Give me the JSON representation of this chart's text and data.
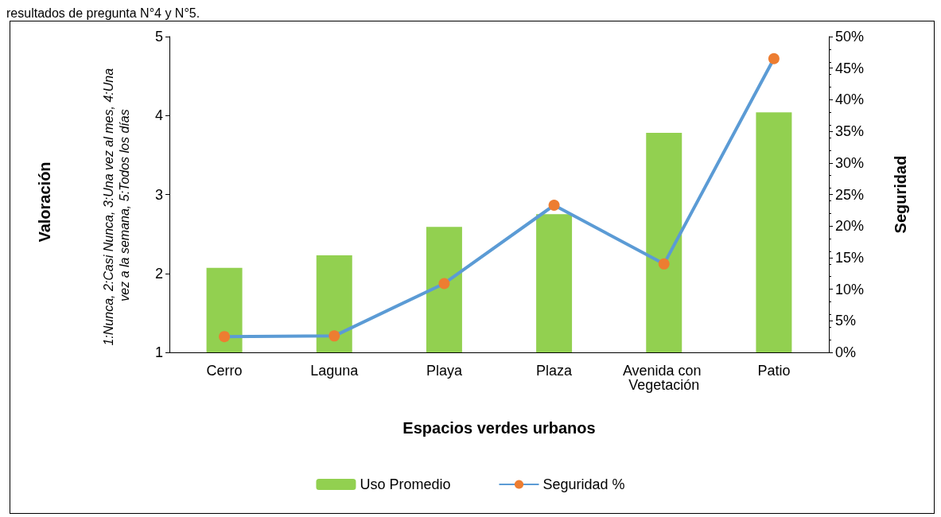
{
  "chart_data": {
    "type": "bar",
    "annotations": [
      "resultados de pregunta N°4 y N°5.",
      "1:Nunca, 2:Casi Nunca, 3:Una vez al mes, 4:Una vez a la semana, 5:Todos los días",
      "Valoración"
    ],
    "xlabel": "Espacios verdes urbanos",
    "y2label": "Seguridad",
    "categories": [
      "Cerro",
      "Laguna",
      "Playa",
      "Plaza",
      "Avenida con Vegetación",
      "Patio"
    ],
    "series": [
      {
        "name": "Uso Promedio",
        "color": "#92d050",
        "values": [
          2.07,
          2.23,
          2.59,
          2.75,
          3.78,
          4.04
        ]
      },
      {
        "name": "Seguridad %",
        "type": "line",
        "axis": "y2",
        "color": "#5b9bd5",
        "marker": "circle",
        "colors": [
          "#ed7d31",
          "#ed7d31",
          "#ed7d31",
          "#ed7d31",
          "#ed7d31",
          "#ed7d31"
        ],
        "values": [
          2.5,
          2.6,
          10.9,
          23.3,
          14.0,
          46.5
        ]
      }
    ],
    "ylim": [
      1,
      5
    ],
    "yticks": [
      1,
      2,
      3,
      4,
      5
    ],
    "y2lim": [
      0,
      50
    ],
    "y2ticks": [
      {
        "value": 0,
        "label": "0%"
      },
      {
        "value": 5,
        "label": "5%"
      },
      {
        "value": 10,
        "label": "10%"
      },
      {
        "value": 15,
        "label": "15%"
      },
      {
        "value": 20,
        "label": "20%"
      },
      {
        "value": 25,
        "label": "25%"
      },
      {
        "value": 30,
        "label": "30%"
      },
      {
        "value": 35,
        "label": "35%"
      },
      {
        "value": 40,
        "label": "40%"
      },
      {
        "value": 45,
        "label": "45%"
      },
      {
        "value": 50,
        "label": "50%"
      }
    ],
    "grid": false,
    "legend": "bottom"
  }
}
